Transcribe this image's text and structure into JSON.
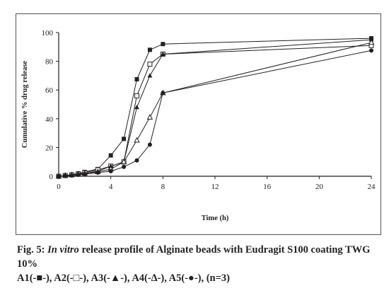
{
  "chart_data": {
    "type": "line",
    "title": "",
    "xlabel": "Time (h)",
    "ylabel": "Cumulative % drug release",
    "xlim": [
      0,
      24
    ],
    "ylim": [
      0,
      100
    ],
    "x_ticks": [
      0,
      4,
      8,
      12,
      16,
      20,
      24
    ],
    "y_ticks": [
      0,
      20,
      40,
      60,
      80,
      100
    ],
    "grid": false,
    "legend": "none",
    "series": [
      {
        "name": "A1",
        "marker": "filled-square",
        "x": [
          0,
          0.5,
          1,
          1.5,
          2,
          3,
          4,
          5,
          6,
          7,
          8,
          24
        ],
        "y": [
          0,
          0.5,
          1,
          2,
          3,
          5,
          14.5,
          26,
          67.5,
          88,
          92,
          96
        ]
      },
      {
        "name": "A2",
        "marker": "open-square",
        "x": [
          0,
          0.5,
          1,
          1.5,
          2,
          3,
          4,
          5,
          6,
          7,
          8,
          24
        ],
        "y": [
          0,
          0.5,
          1,
          1.5,
          2.5,
          4.5,
          7,
          10,
          56,
          78,
          85,
          91
        ]
      },
      {
        "name": "A3",
        "marker": "filled-triangle",
        "x": [
          0,
          0.5,
          1,
          1.5,
          2,
          3,
          4,
          5,
          6,
          7,
          8,
          24
        ],
        "y": [
          0,
          0.5,
          1,
          1.5,
          2,
          3.5,
          7,
          10,
          48,
          70,
          85,
          95
        ]
      },
      {
        "name": "A4",
        "marker": "open-triangle",
        "x": [
          0,
          0.5,
          1,
          1.5,
          2,
          3,
          4,
          5,
          6,
          7,
          8,
          24
        ],
        "y": [
          0,
          0.5,
          1,
          1.5,
          2,
          3,
          5,
          10,
          25,
          41,
          58,
          93
        ]
      },
      {
        "name": "A5",
        "marker": "filled-circle",
        "x": [
          0,
          0.5,
          1,
          1.5,
          2,
          3,
          4,
          5,
          6,
          7,
          8,
          24
        ],
        "y": [
          0,
          0.3,
          0.5,
          1,
          1.5,
          2.5,
          3.5,
          6.5,
          11,
          22,
          58,
          87.5
        ]
      }
    ]
  },
  "caption": {
    "fig_label": "Fig. 5: ",
    "fig_italic": "In vitro",
    "fig_rest": " release profile of Alginate beads with Eudragit S100 coating TWG 10%",
    "legend_line": "A1(-■-), A2(-□-), A3(-▲-), A4(-∆-), A5(-●-), (n=3)"
  },
  "colors": {
    "ink": "#231f20",
    "frame": "#555555"
  }
}
